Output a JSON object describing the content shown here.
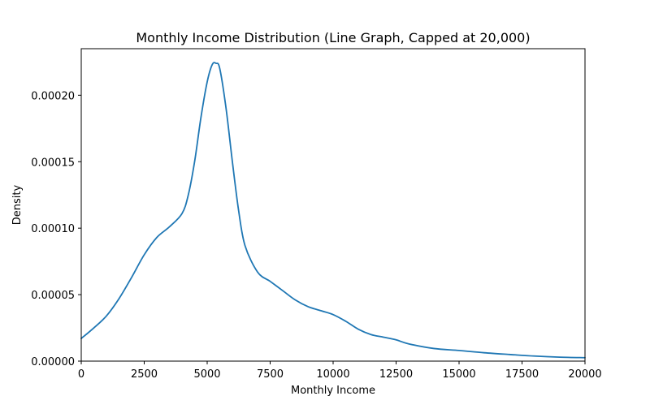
{
  "chart_data": {
    "type": "line",
    "title": "Monthly Income Distribution (Line Graph, Capped at 20,000)",
    "xlabel": "Monthly Income",
    "ylabel": "Density",
    "xlim": [
      0,
      20000
    ],
    "ylim": [
      0,
      0.000235
    ],
    "grid": false,
    "legend": "none",
    "line_color": "#1f77b4",
    "x_ticks": [
      {
        "value": 0,
        "label": "0"
      },
      {
        "value": 2500,
        "label": "2500"
      },
      {
        "value": 5000,
        "label": "5000"
      },
      {
        "value": 7500,
        "label": "7500"
      },
      {
        "value": 10000,
        "label": "10000"
      },
      {
        "value": 12500,
        "label": "12500"
      },
      {
        "value": 15000,
        "label": "15000"
      },
      {
        "value": 17500,
        "label": "17500"
      },
      {
        "value": 20000,
        "label": "20000"
      }
    ],
    "y_ticks": [
      {
        "value": 0,
        "label": "0.00000"
      },
      {
        "value": 5e-05,
        "label": "0.00005"
      },
      {
        "value": 0.0001,
        "label": "0.00010"
      },
      {
        "value": 0.00015,
        "label": "0.00015"
      },
      {
        "value": 0.0002,
        "label": "0.00020"
      }
    ],
    "series": [
      {
        "x": [
          0,
          500,
          1000,
          1500,
          2000,
          2500,
          3000,
          3500,
          4000,
          4250,
          4500,
          4750,
          5000,
          5200,
          5350,
          5500,
          5750,
          6000,
          6250,
          6500,
          7000,
          7500,
          8000,
          8500,
          9000,
          9500,
          10000,
          10500,
          11000,
          11500,
          12000,
          12500,
          13000,
          14000,
          15000,
          16000,
          17000,
          18000,
          19000,
          20000
        ],
        "y": [
          1.7e-05,
          2.5e-05,
          3.4e-05,
          4.7e-05,
          6.3e-05,
          8e-05,
          9.3e-05,
          0.000101,
          0.000111,
          0.000125,
          0.00015,
          0.000183,
          0.00021,
          0.000223,
          0.000224,
          0.00022,
          0.00019,
          0.00015,
          0.000113,
          8.7e-05,
          6.7e-05,
          6e-05,
          5.3e-05,
          4.6e-05,
          4.1e-05,
          3.8e-05,
          3.5e-05,
          3e-05,
          2.4e-05,
          2e-05,
          1.8e-05,
          1.6e-05,
          1.3e-05,
          9.5e-06,
          8e-06,
          6.3e-06,
          5e-06,
          3.8e-06,
          3e-06,
          2.6e-06
        ]
      }
    ]
  }
}
